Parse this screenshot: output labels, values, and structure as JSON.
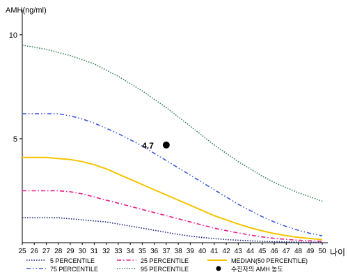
{
  "chart_data": {
    "type": "line",
    "ylabel": "AMH(ng/ml)",
    "xlabel": "나이",
    "x": [
      25,
      26,
      27,
      28,
      29,
      30,
      31,
      32,
      33,
      34,
      35,
      36,
      37,
      38,
      39,
      40,
      41,
      42,
      43,
      44,
      45,
      46,
      47,
      48,
      49,
      50
    ],
    "xlim": [
      25,
      50
    ],
    "ylim": [
      0,
      11
    ],
    "yticks": [
      5,
      10
    ],
    "grid": false,
    "legend_position": "bottom",
    "series": [
      {
        "name": "5 PERCENTILE",
        "color": "#1a237e",
        "dash": "dotted",
        "values": [
          1.2,
          1.2,
          1.2,
          1.2,
          1.15,
          1.1,
          1.05,
          1.0,
          0.9,
          0.8,
          0.7,
          0.6,
          0.5,
          0.4,
          0.32,
          0.25,
          0.2,
          0.15,
          0.12,
          0.09,
          0.07,
          0.05,
          0.04,
          0.03,
          0.02,
          0.02
        ]
      },
      {
        "name": "25 PERCENTILE",
        "color": "#e91e8c",
        "dash": "dashdot",
        "values": [
          2.5,
          2.5,
          2.5,
          2.5,
          2.45,
          2.35,
          2.2,
          2.05,
          1.9,
          1.75,
          1.6,
          1.45,
          1.3,
          1.15,
          1.0,
          0.85,
          0.7,
          0.58,
          0.47,
          0.37,
          0.28,
          0.21,
          0.16,
          0.12,
          0.09,
          0.07
        ]
      },
      {
        "name": "MEDIAN(50 PERCENTILE)",
        "color": "#f5c400",
        "dash": "solid",
        "values": [
          4.1,
          4.1,
          4.1,
          4.05,
          4.0,
          3.9,
          3.75,
          3.55,
          3.3,
          3.05,
          2.8,
          2.55,
          2.3,
          2.05,
          1.8,
          1.55,
          1.3,
          1.1,
          0.9,
          0.72,
          0.57,
          0.44,
          0.34,
          0.26,
          0.2,
          0.15
        ]
      },
      {
        "name": "75 PERCENTILE",
        "color": "#3b5bdb",
        "dash": "dashdotdot",
        "values": [
          6.2,
          6.2,
          6.2,
          6.2,
          6.1,
          5.95,
          5.75,
          5.5,
          5.25,
          4.95,
          4.65,
          4.3,
          3.95,
          3.6,
          3.25,
          2.9,
          2.55,
          2.2,
          1.85,
          1.55,
          1.25,
          1.0,
          0.78,
          0.6,
          0.45,
          0.33
        ]
      },
      {
        "name": "95 PERCENTILE",
        "color": "#2e7d4f",
        "dash": "dotted",
        "values": [
          9.5,
          9.4,
          9.3,
          9.15,
          9.0,
          8.8,
          8.6,
          8.3,
          8.0,
          7.65,
          7.3,
          6.9,
          6.5,
          6.05,
          5.6,
          5.15,
          4.7,
          4.3,
          3.9,
          3.55,
          3.2,
          2.9,
          2.65,
          2.4,
          2.2,
          2.0
        ]
      }
    ],
    "point": {
      "name": "수진자의 AMH 농도",
      "x": 37,
      "y": 4.7,
      "label": "4.7",
      "color": "#000000"
    }
  }
}
